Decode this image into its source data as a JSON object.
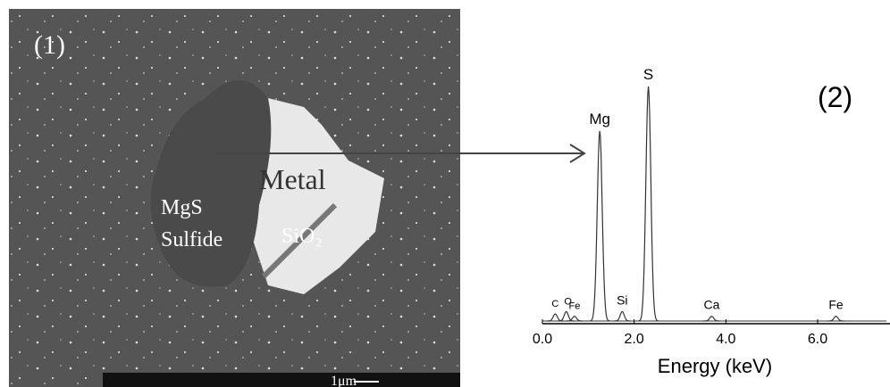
{
  "image_panel": {
    "label": "(1)",
    "annotations": {
      "metal": "Metal",
      "mgs": "MgS",
      "sulfide": "Sulfide",
      "sio2": "SiO₂"
    },
    "scale_bar": "1μm"
  },
  "chart_data": {
    "type": "spectrum",
    "panel_label": "(2)",
    "x_label": "Energy (keV)",
    "xlim": [
      0,
      7.5
    ],
    "ylim": [
      0,
      100
    ],
    "xticks": [
      {
        "value": 0,
        "label": "0.0"
      },
      {
        "value": 2,
        "label": "2.0"
      },
      {
        "value": 4,
        "label": "4.0"
      },
      {
        "value": 6,
        "label": "6.0"
      }
    ],
    "peaks": {
      "names": [
        "C",
        "O",
        "Fe",
        "Mg",
        "Si",
        "S",
        "Ca",
        "Fe"
      ],
      "x": [
        0.28,
        0.52,
        0.7,
        1.25,
        1.74,
        2.31,
        3.69,
        6.4
      ],
      "values": [
        3,
        4,
        2,
        81,
        4,
        100,
        2,
        2
      ]
    },
    "color": "#333333"
  }
}
